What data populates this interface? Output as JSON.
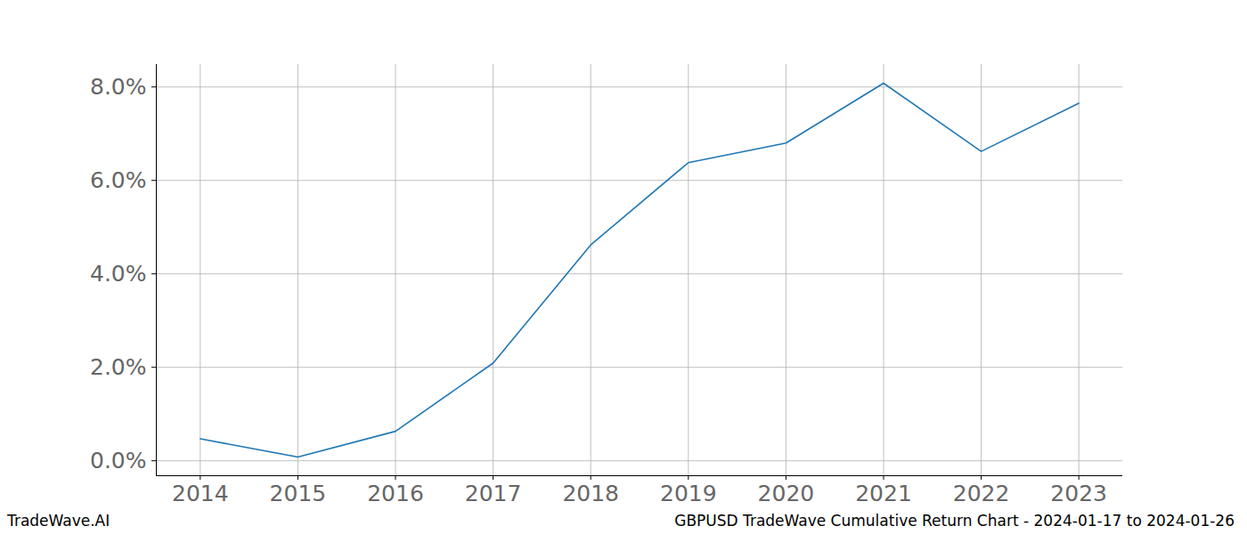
{
  "chart_data": {
    "type": "line",
    "annotations": [
      "TradeWave.AI",
      "GBPUSD TradeWave Cumulative Return Chart - 2024-01-17 to 2024-01-26"
    ],
    "x": [
      2014,
      2015,
      2016,
      2017,
      2018,
      2019,
      2020,
      2021,
      2022,
      2023
    ],
    "values": [
      0.47,
      0.08,
      0.63,
      2.09,
      4.62,
      6.38,
      6.8,
      8.08,
      6.62,
      7.65
    ],
    "color": "#1f77b4",
    "xlim": [
      2013.55,
      2023.45
    ],
    "xticks": [
      2014,
      2015,
      2016,
      2017,
      2018,
      2019,
      2020,
      2021,
      2022,
      2023
    ],
    "ylim": [
      -0.32,
      8.48
    ],
    "yticks": [
      {
        "value": 0,
        "label": "0.0%"
      },
      {
        "value": 2,
        "label": "2.0%"
      },
      {
        "value": 4,
        "label": "4.0%"
      },
      {
        "value": 6,
        "label": "6.0%"
      },
      {
        "value": 8,
        "label": "8.0%"
      }
    ],
    "grid": true
  }
}
